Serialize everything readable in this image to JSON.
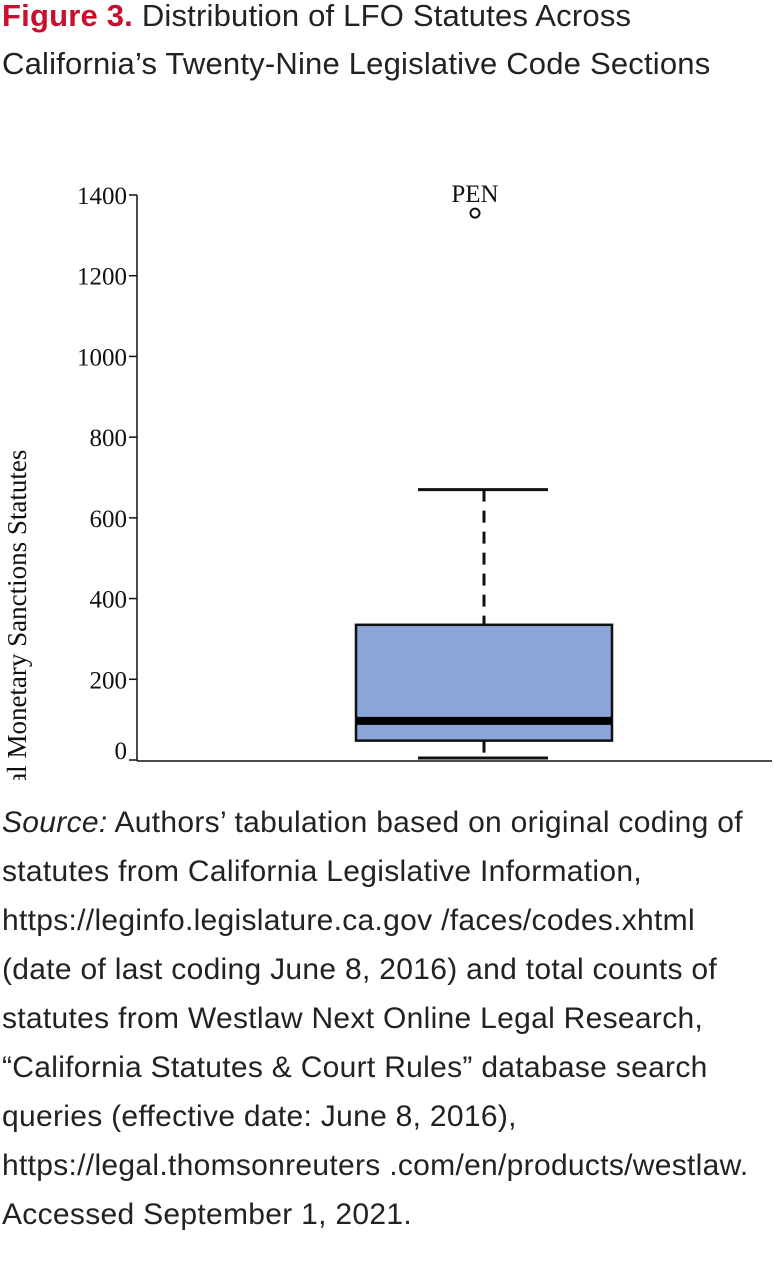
{
  "caption": {
    "figure_label": "Figure 3.",
    "title": " Distribution of LFO Statutes Across California’s Twenty-Nine Legislative Code Sections"
  },
  "chart_data": {
    "type": "box",
    "title": "Figure 3. Distribution of LFO Statutes Across California’s Twenty-Nine Legislative Code Sections",
    "ylabel": "Total Monetary Sanctions Statutes",
    "xlabel": "",
    "ylim": [
      0,
      1400
    ],
    "yticks": [
      0,
      200,
      400,
      600,
      800,
      1000,
      1200,
      1400
    ],
    "grid": false,
    "box": {
      "whisker_low": 5,
      "q1": 48,
      "median": 97,
      "q3": 335,
      "whisker_high": 670,
      "fill": "#8aa5d6"
    },
    "outliers": [
      {
        "label": "PEN",
        "value": 1355
      }
    ]
  },
  "source": {
    "lead": "Source:",
    "text": " Authors’ tabulation based on original coding of statutes from California Legislative Information, https://leginfo.legislature.ca.gov /faces/codes.xhtml (date of last coding June 8, 2016) and total counts of statutes from Westlaw Next Online Legal Research, “California Statutes & Court Rules” database search queries (effective date: June 8, 2016), https://legal.thomsonreuters .com/en/products/westlaw. Accessed September 1, 2021."
  }
}
